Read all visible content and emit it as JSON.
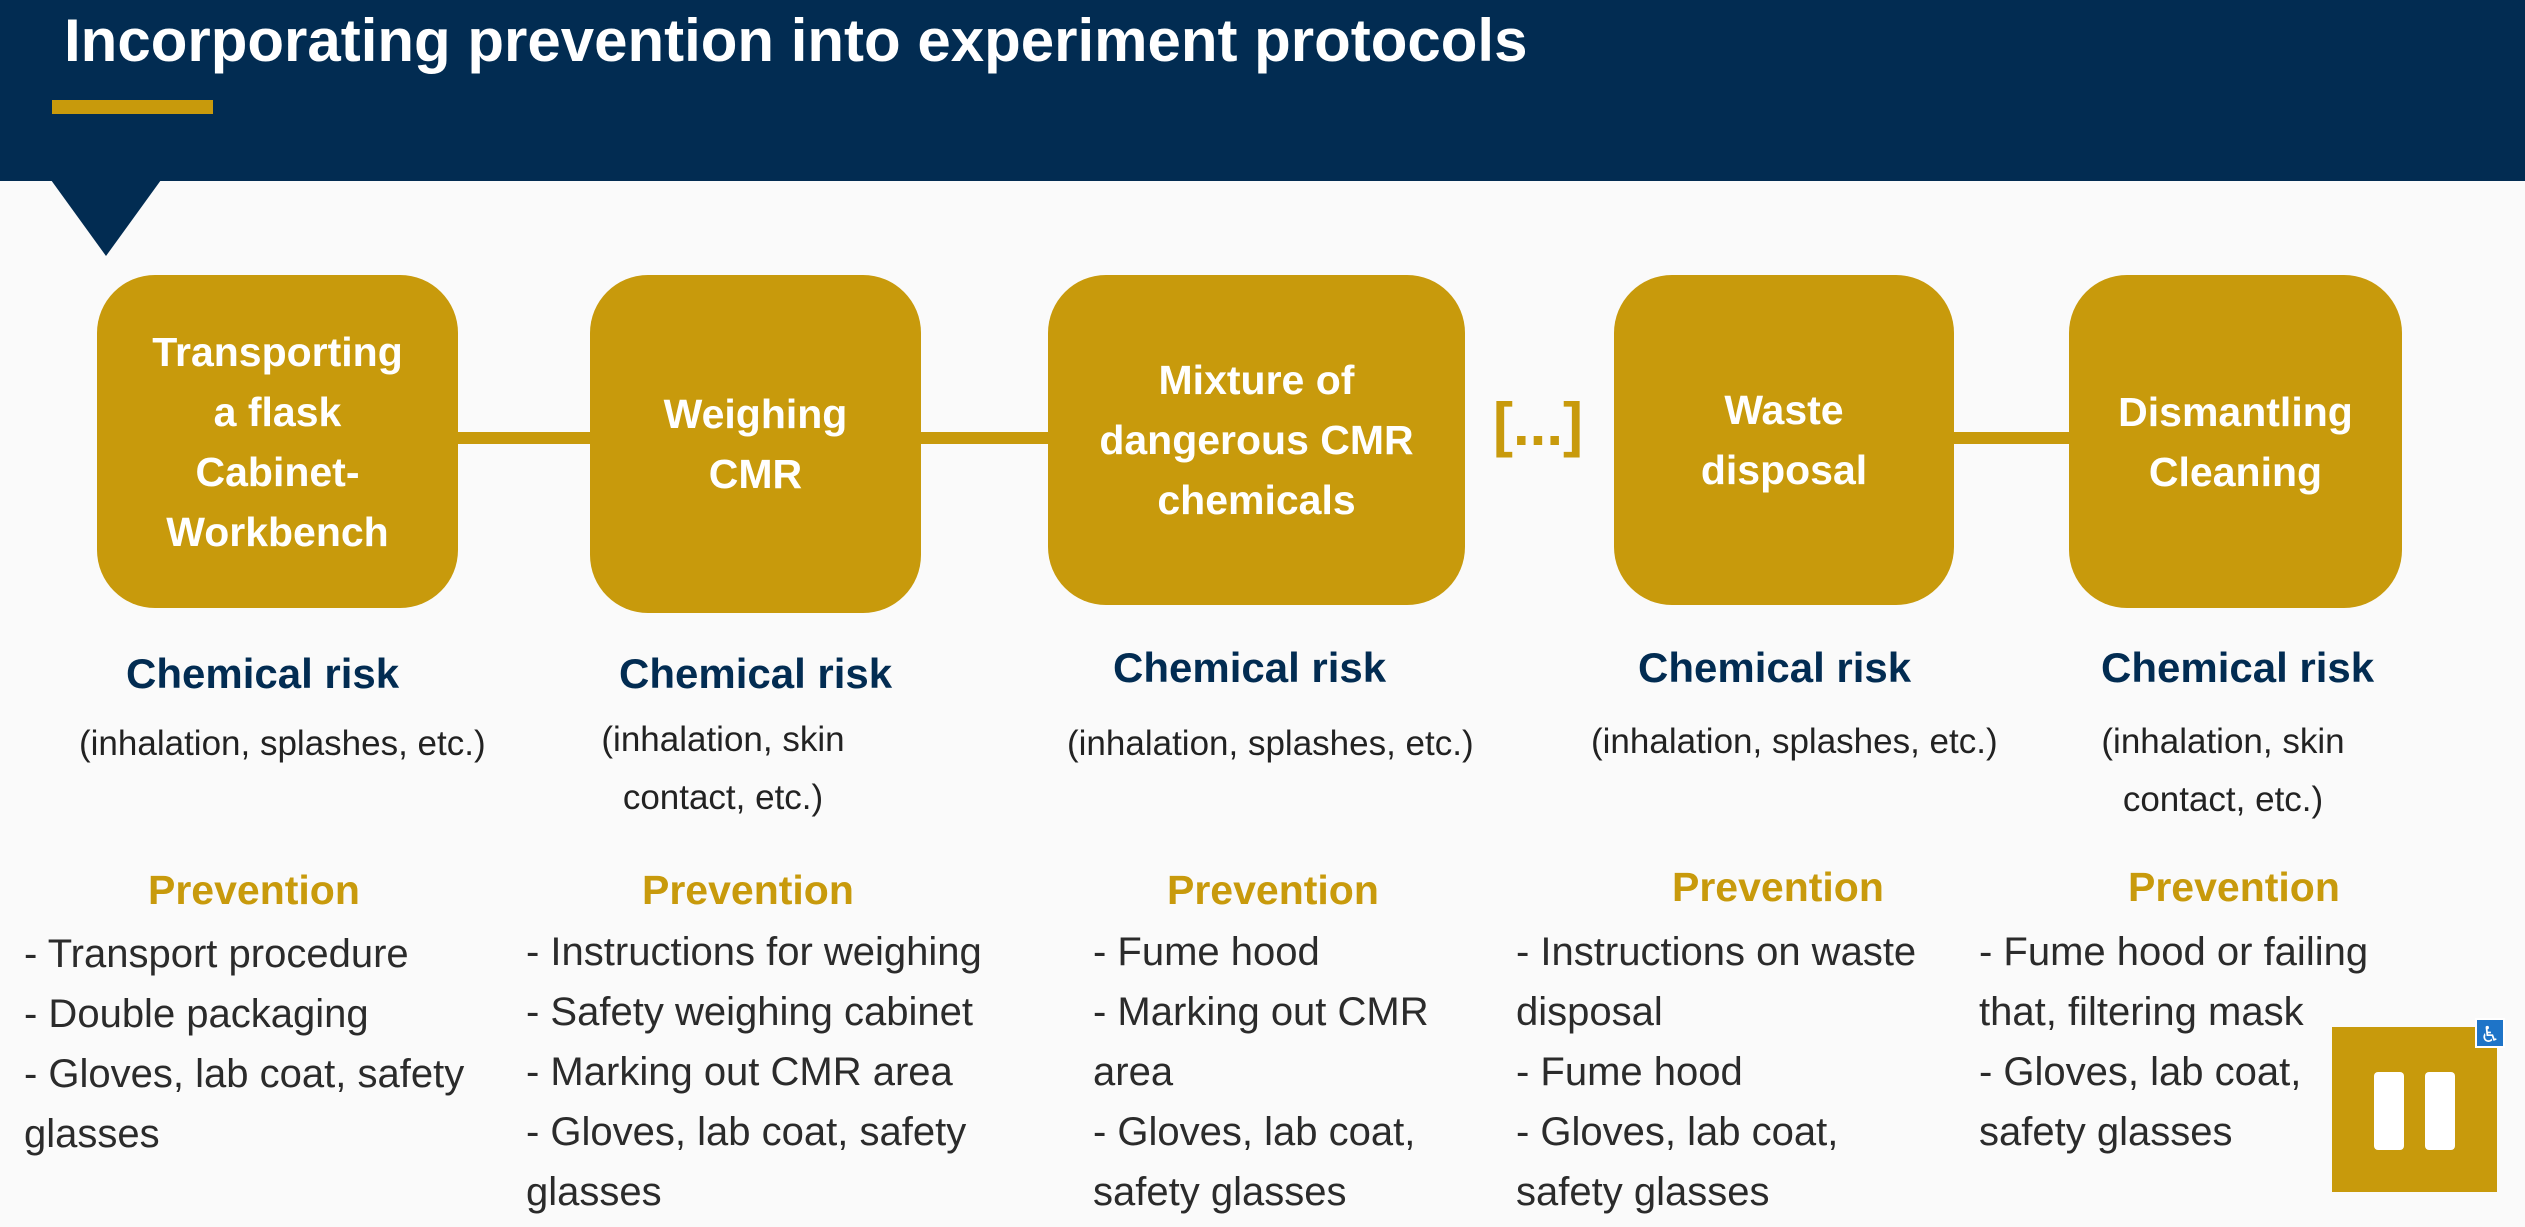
{
  "header": {
    "title": "Incorporating prevention into experiment protocols"
  },
  "flow": {
    "ellipsis": "[...]"
  },
  "steps": [
    {
      "label": "Transporting\na flask\nCabinet-\nWorkbench",
      "risk_title": "Chemical risk",
      "risk_detail": "(inhalation, splashes, etc.)",
      "prevention_title": "Prevention",
      "prevention_items": [
        "- Transport procedure",
        "- Double packaging",
        "- Gloves, lab coat, safety glasses"
      ]
    },
    {
      "label": "Weighing\nCMR",
      "risk_title": "Chemical risk",
      "risk_detail": "(inhalation, skin contact, etc.)",
      "prevention_title": "Prevention",
      "prevention_items": [
        "- Instructions for weighing",
        "- Safety weighing cabinet",
        "- Marking out CMR area",
        "- Gloves, lab coat, safety glasses"
      ]
    },
    {
      "label": "Mixture of\ndangerous CMR\nchemicals",
      "risk_title": "Chemical risk",
      "risk_detail": "(inhalation, splashes, etc.)",
      "prevention_title": "Prevention",
      "prevention_items": [
        "- Fume hood",
        "- Marking out CMR area",
        "- Gloves, lab coat, safety glasses"
      ]
    },
    {
      "label": "Waste\ndisposal",
      "risk_title": "Chemical risk",
      "risk_detail": "(inhalation, splashes, etc.)",
      "prevention_title": "Prevention",
      "prevention_items": [
        "- Instructions on waste disposal",
        "- Fume hood",
        "- Gloves, lab coat, safety glasses"
      ]
    },
    {
      "label": "Dismantling\nCleaning",
      "risk_title": "Chemical risk",
      "risk_detail": "(inhalation, skin contact, etc.)",
      "prevention_title": "Prevention",
      "prevention_items": [
        "- Fume hood or failing that, filtering mask",
        "- Gloves, lab coat, safety glasses"
      ]
    }
  ],
  "player": {
    "pause_icon": "pause-icon",
    "badge_icon": "accessibility-icon"
  },
  "colors": {
    "navy": "#022c52",
    "gold": "#c89a0c"
  }
}
